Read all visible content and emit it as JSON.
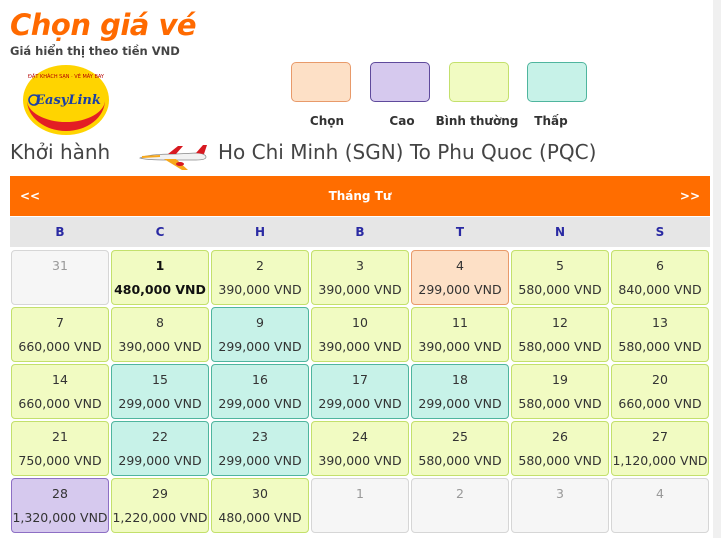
{
  "header": {
    "title": "Chọn giá vé",
    "subtitle": "Giá hiển thị theo tiền VND"
  },
  "logo": {
    "top_text": "ĐẶT KHÁCH SẠN · VÉ MÁY BAY",
    "brand": "EasyLink"
  },
  "legend": [
    {
      "label": "Chọn",
      "color": "#fde0c6"
    },
    {
      "label": "Cao",
      "color": "#d6c9ee"
    },
    {
      "label": "Bình thường",
      "color": "#f1fbc2"
    },
    {
      "label": "Thấp",
      "color": "#c7f2e8"
    }
  ],
  "route": {
    "depart_label": "Khởi hành",
    "text": "Ho Chi Minh (SGN) To Phu Quoc (PQC)"
  },
  "calendar": {
    "prev": "<<",
    "next": ">>",
    "month": "Tháng Tư",
    "weekdays": [
      "B",
      "C",
      "H",
      "B",
      "T",
      "N",
      "S"
    ],
    "days": [
      {
        "day": "31",
        "price": "",
        "level": "empty"
      },
      {
        "day": "1",
        "price": "480,000 VND",
        "level": "normal",
        "bold": true
      },
      {
        "day": "2",
        "price": "390,000 VND",
        "level": "normal"
      },
      {
        "day": "3",
        "price": "390,000 VND",
        "level": "normal"
      },
      {
        "day": "4",
        "price": "299,000 VND",
        "level": "selected"
      },
      {
        "day": "5",
        "price": "580,000 VND",
        "level": "normal"
      },
      {
        "day": "6",
        "price": "840,000 VND",
        "level": "normal"
      },
      {
        "day": "7",
        "price": "660,000 VND",
        "level": "normal"
      },
      {
        "day": "8",
        "price": "390,000 VND",
        "level": "normal"
      },
      {
        "day": "9",
        "price": "299,000 VND",
        "level": "low"
      },
      {
        "day": "10",
        "price": "390,000 VND",
        "level": "normal"
      },
      {
        "day": "11",
        "price": "390,000 VND",
        "level": "normal"
      },
      {
        "day": "12",
        "price": "580,000 VND",
        "level": "normal"
      },
      {
        "day": "13",
        "price": "580,000 VND",
        "level": "normal"
      },
      {
        "day": "14",
        "price": "660,000 VND",
        "level": "normal"
      },
      {
        "day": "15",
        "price": "299,000 VND",
        "level": "low"
      },
      {
        "day": "16",
        "price": "299,000 VND",
        "level": "low"
      },
      {
        "day": "17",
        "price": "299,000 VND",
        "level": "low"
      },
      {
        "day": "18",
        "price": "299,000 VND",
        "level": "low"
      },
      {
        "day": "19",
        "price": "580,000 VND",
        "level": "normal"
      },
      {
        "day": "20",
        "price": "660,000 VND",
        "level": "normal"
      },
      {
        "day": "21",
        "price": "750,000 VND",
        "level": "normal"
      },
      {
        "day": "22",
        "price": "299,000 VND",
        "level": "low"
      },
      {
        "day": "23",
        "price": "299,000 VND",
        "level": "low"
      },
      {
        "day": "24",
        "price": "390,000 VND",
        "level": "normal"
      },
      {
        "day": "25",
        "price": "580,000 VND",
        "level": "normal"
      },
      {
        "day": "26",
        "price": "580,000 VND",
        "level": "normal"
      },
      {
        "day": "27",
        "price": "1,120,000 VND",
        "level": "normal"
      },
      {
        "day": "28",
        "price": "1,320,000 VND",
        "level": "high"
      },
      {
        "day": "29",
        "price": "1,220,000 VND",
        "level": "normal"
      },
      {
        "day": "30",
        "price": "480,000 VND",
        "level": "normal"
      },
      {
        "day": "1",
        "price": "",
        "level": "empty"
      },
      {
        "day": "2",
        "price": "",
        "level": "empty"
      },
      {
        "day": "3",
        "price": "",
        "level": "empty"
      },
      {
        "day": "4",
        "price": "",
        "level": "empty"
      }
    ]
  }
}
